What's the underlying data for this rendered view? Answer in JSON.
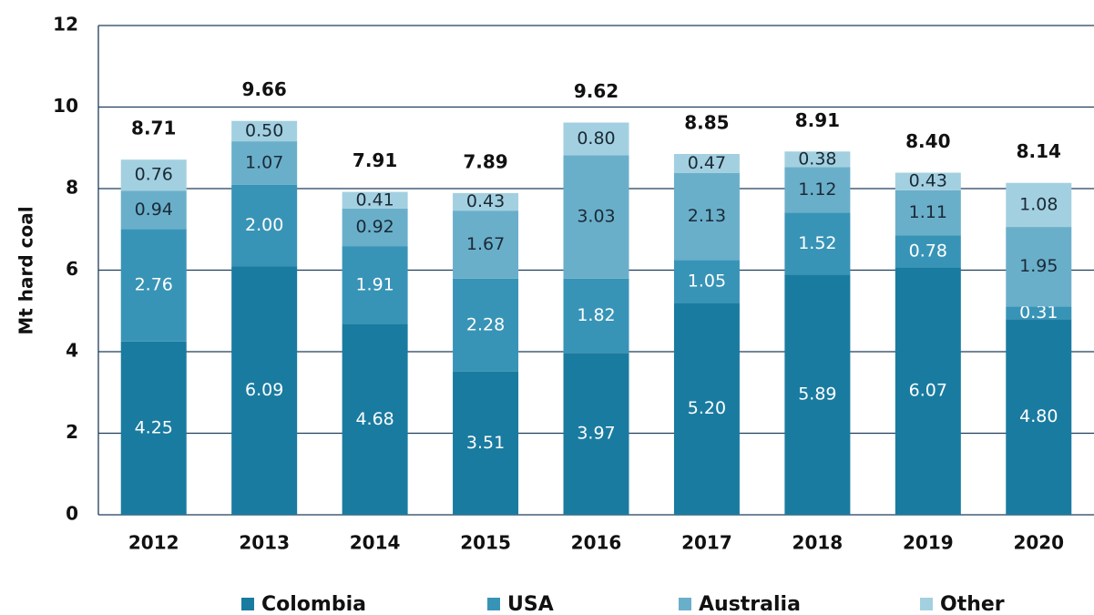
{
  "chart_data": {
    "type": "stacked-bar",
    "y_label": "Mt hard coal",
    "categories": [
      "2012",
      "2013",
      "2014",
      "2015",
      "2016",
      "2017",
      "2018",
      "2019",
      "2020"
    ],
    "series": [
      {
        "name": "Colombia",
        "color": "#1a7ba0",
        "values": [
          4.25,
          6.09,
          4.68,
          3.51,
          3.97,
          5.2,
          5.89,
          6.07,
          4.8
        ],
        "value_labels": [
          "4.25",
          "6.09",
          "4.68",
          "3.51",
          "3.97",
          "5.20",
          "5.89",
          "6.07",
          "4.80"
        ]
      },
      {
        "name": "USA",
        "color": "#3894b7",
        "values": [
          2.76,
          2.0,
          1.91,
          2.28,
          1.82,
          1.05,
          1.52,
          0.78,
          0.31
        ],
        "value_labels": [
          "2.76",
          "2.00",
          "1.91",
          "2.28",
          "1.82",
          "1.05",
          "1.52",
          "0.78",
          "0.31"
        ]
      },
      {
        "name": "Australia",
        "color": "#6aafca",
        "values": [
          0.94,
          1.07,
          0.92,
          1.67,
          3.03,
          2.13,
          1.12,
          1.11,
          1.95
        ],
        "value_labels": [
          "0.94",
          "1.07",
          "0.92",
          "1.67",
          "3.03",
          "2.13",
          "1.12",
          "1.11",
          "1.95"
        ]
      },
      {
        "name": "Other",
        "color": "#a3d0e0",
        "values": [
          0.76,
          0.5,
          0.41,
          0.43,
          0.8,
          0.47,
          0.38,
          0.43,
          1.08
        ],
        "value_labels": [
          "0.76",
          "0.50",
          "0.41",
          "0.43",
          "0.80",
          "0.47",
          "0.38",
          "0.43",
          "1.08"
        ]
      }
    ],
    "totals": {
      "values": [
        8.71,
        9.66,
        7.91,
        7.89,
        9.62,
        8.85,
        8.91,
        8.4,
        8.14
      ],
      "value_labels": [
        "8.71",
        "9.66",
        "7.91",
        "7.89",
        "9.62",
        "8.85",
        "8.91",
        "8.40",
        "8.14"
      ]
    },
    "ylim": [
      0,
      12
    ],
    "yticks": [
      0,
      2,
      4,
      6,
      8,
      10,
      12
    ],
    "grid": true
  }
}
